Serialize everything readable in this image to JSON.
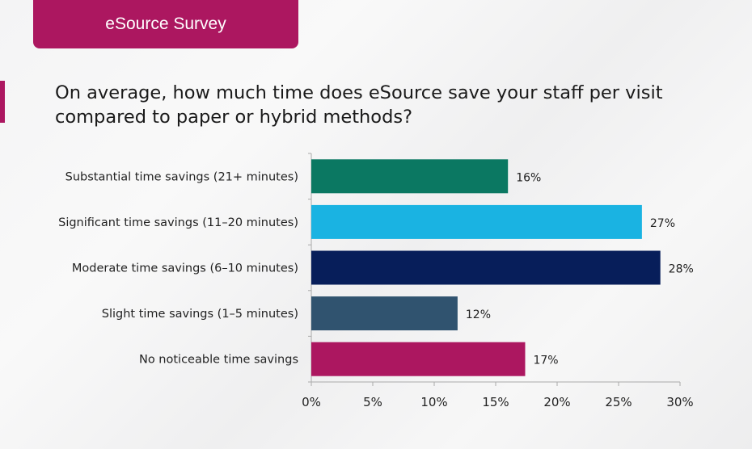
{
  "header": {
    "label": "eSource Survey"
  },
  "question": "On average, how much time does eSource save your staff per visit compared to paper or hybrid methods?",
  "colors": {
    "brand": "#AC1760"
  },
  "chart_data": {
    "type": "bar",
    "orientation": "horizontal",
    "title": "On average, how much time does eSource save your staff per visit compared to paper or hybrid methods?",
    "categories": [
      "Substantial time savings (21+ minutes)",
      "Significant time savings (11–20 minutes)",
      "Moderate time savings (6–10 minutes)",
      "Slight time savings (1–5 minutes)",
      "No noticeable time savings"
    ],
    "values": [
      16.0,
      26.9,
      28.4,
      11.9,
      17.4
    ],
    "data_labels": [
      "16%",
      "27%",
      "28%",
      "12%",
      "17%"
    ],
    "colors": [
      "#0B7862",
      "#1AB3E2",
      "#071E5A",
      "#30536F",
      "#AC1760"
    ],
    "xlim": [
      0,
      30
    ],
    "xticks": [
      0,
      5,
      10,
      15,
      20,
      25,
      30
    ],
    "xtick_labels": [
      "0%",
      "5%",
      "10%",
      "15%",
      "20%",
      "25%",
      "30%"
    ],
    "xlabel": "",
    "ylabel": "",
    "grid": false,
    "legend": "none"
  }
}
